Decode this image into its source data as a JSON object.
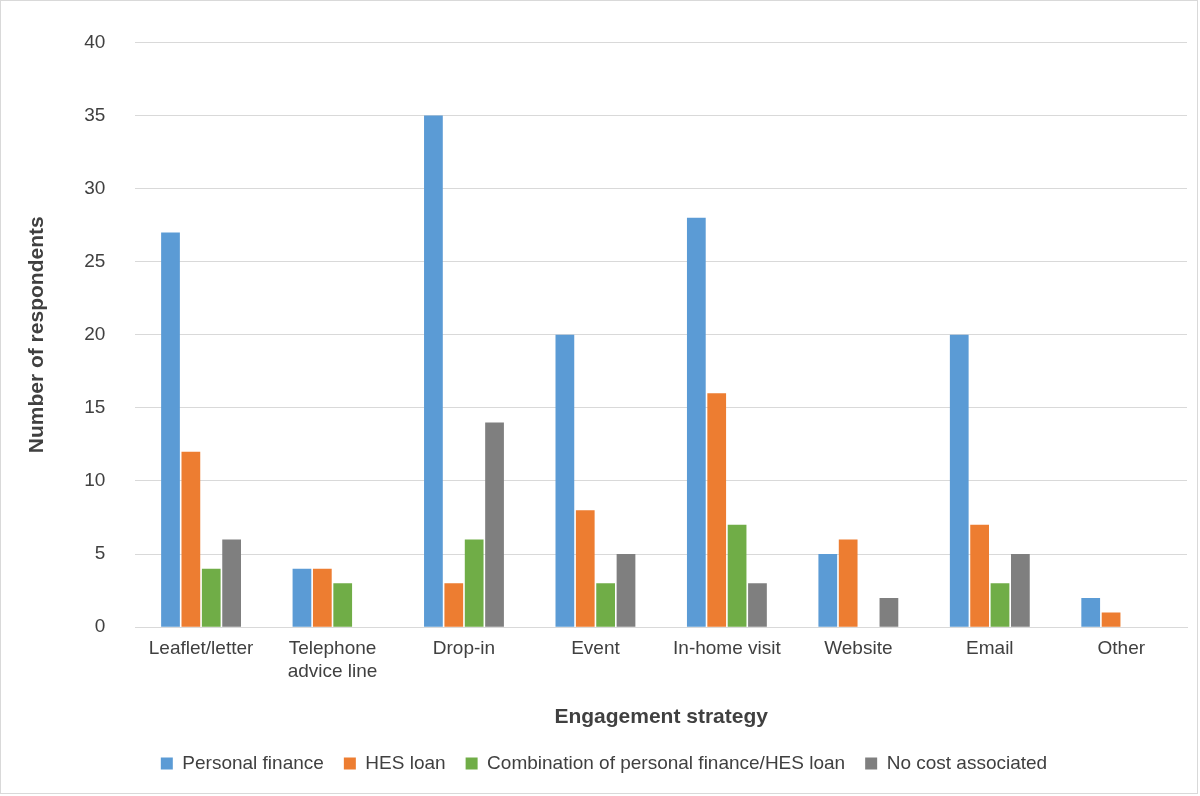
{
  "chart_data": {
    "type": "bar",
    "xlabel": "Engagement strategy",
    "ylabel": "Number of respondents",
    "categories": [
      "Leaflet/letter",
      "Telephone advice line",
      "Drop-in",
      "Event",
      "In-home visit",
      "Website",
      "Email",
      "Other"
    ],
    "series": [
      {
        "name": "Personal finance",
        "color": "#5b9bd5",
        "values": [
          27,
          4,
          35,
          20,
          28,
          5,
          20,
          2
        ]
      },
      {
        "name": "HES loan",
        "color": "#ed7d31",
        "values": [
          12,
          4,
          3,
          8,
          16,
          6,
          7,
          1
        ]
      },
      {
        "name": "Combination of personal finance/HES loan",
        "color": "#70ad47",
        "values": [
          4,
          3,
          6,
          3,
          7,
          0,
          3,
          0
        ]
      },
      {
        "name": "No cost associated",
        "color": "#7f7f7f",
        "values": [
          6,
          0,
          14,
          5,
          3,
          2,
          5,
          0
        ]
      }
    ],
    "ylim": [
      0,
      40
    ],
    "yticks": [
      0,
      5,
      10,
      15,
      20,
      25,
      30,
      35,
      40
    ],
    "grid": "y",
    "legend": "bottom"
  }
}
